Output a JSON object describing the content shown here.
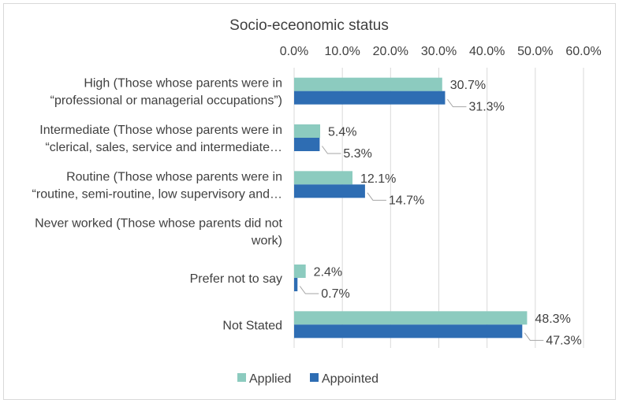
{
  "chart_data": {
    "type": "bar",
    "orientation": "horizontal",
    "title": "Socio-eceonomic status",
    "xlim": [
      0,
      60
    ],
    "x_ticks": [
      0,
      10,
      20,
      30,
      40,
      50,
      60
    ],
    "x_tick_labels": [
      "0.0%",
      "10.0%",
      "20.0%",
      "30.0%",
      "40.0%",
      "50.0%",
      "60.0%"
    ],
    "x_axis_position": "top",
    "grid": "vertical",
    "legend": "bottom",
    "categories": [
      [
        "High (Those whose parents were in",
        "“professional or managerial occupations”)"
      ],
      [
        "Intermediate (Those whose parents were in",
        "“clerical, sales, service and intermediate…"
      ],
      [
        "Routine (Those whose parents were in",
        "“routine, semi-routine, low supervisory and…"
      ],
      [
        "Never worked (Those whose parents did not",
        "work)"
      ],
      [
        "Prefer not to say"
      ],
      [
        "Not Stated"
      ]
    ],
    "series": [
      {
        "name": "Applied",
        "color": "#8ccbbf",
        "values": [
          30.7,
          5.4,
          12.1,
          null,
          2.4,
          48.3
        ],
        "labels": [
          "30.7%",
          "5.4%",
          "12.1%",
          "",
          "2.4%",
          "48.3%"
        ]
      },
      {
        "name": "Appointed",
        "color": "#2e6db3",
        "values": [
          31.3,
          5.3,
          14.7,
          null,
          0.7,
          47.3
        ],
        "labels": [
          "31.3%",
          "5.3%",
          "14.7%",
          "",
          "0.7%",
          "47.3%"
        ]
      }
    ]
  }
}
